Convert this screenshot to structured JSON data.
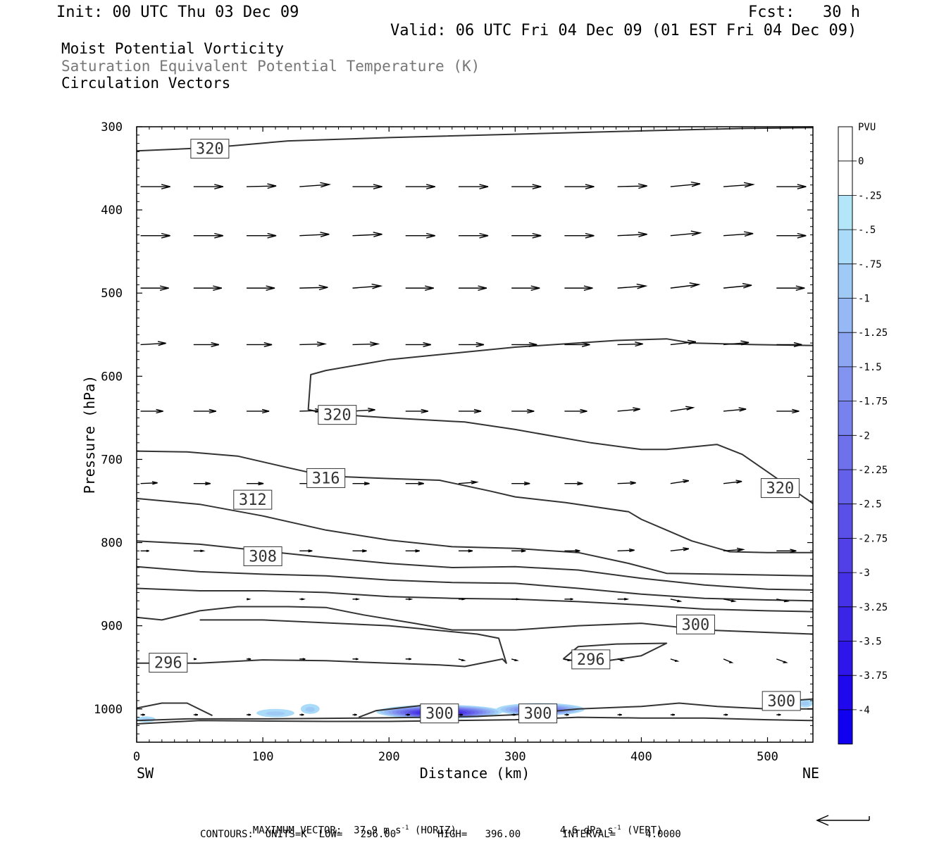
{
  "header": {
    "init": "Init: 00 UTC Thu 03 Dec 09",
    "fcst": "Fcst:   30 h",
    "valid": "Valid: 06 UTC Fri 04 Dec 09 (01 EST Fri 04 Dec 09)"
  },
  "titles": {
    "line1": "Moist Potential Vorticity",
    "line2": "Saturation Equivalent Potential Temperature (K)",
    "line3": "Circulation Vectors"
  },
  "footer": {
    "max_vector_label": "MAXIMUM VECTOR:",
    "max_horiz_value": "37.9",
    "max_horiz_units": "m s",
    "max_horiz_kind": "(HORIZ)",
    "max_vert_value": "4.6",
    "max_vert_units": "dPa s",
    "max_vert_kind": "(VERT)",
    "exp": "-1",
    "contours": "CONTOURS:  UNITS=K  LOW=   296.00       HIGH=   396.00       INTERVAL=     4.0000"
  },
  "chart_data": {
    "type": "cross-section",
    "xlabel": "Distance (km)",
    "ylabel": "Pressure (hPa)",
    "x_range": [
      0,
      536
    ],
    "y_range": [
      300,
      1040
    ],
    "y_scale": "linear, inverted",
    "x_ticks": [
      0,
      100,
      200,
      300,
      400,
      500
    ],
    "y_ticks": [
      300,
      400,
      500,
      600,
      700,
      800,
      900,
      1000
    ],
    "x_end_labels": {
      "left": "SW",
      "right": "NE"
    },
    "colorbar": {
      "units": "PVU",
      "labels": [
        "0",
        "-.25",
        "-.5",
        "-.75",
        "-1",
        "-1.25",
        "-1.5",
        "-1.75",
        "-2",
        "-2.25",
        "-2.5",
        "-2.75",
        "-3",
        "-3.25",
        "-3.5",
        "-3.75",
        "-4"
      ],
      "colors": [
        "#ffffff",
        "#ffffff",
        "#b4e6fa",
        "#aadcfa",
        "#a0caf6",
        "#96b8f4",
        "#8ca6f2",
        "#8294f0",
        "#7882ee",
        "#6e70ec",
        "#6460ea",
        "#5a50e8",
        "#5040e6",
        "#4632e6",
        "#3a24e8",
        "#2e16ea",
        "#2008ee",
        "#1000f0"
      ]
    },
    "contour_labels": [
      {
        "value": "320",
        "x": 58,
        "p": 326
      },
      {
        "value": "320",
        "x": 159,
        "p": 646
      },
      {
        "value": "320",
        "x": 510,
        "p": 734
      },
      {
        "value": "316",
        "x": 150,
        "p": 722
      },
      {
        "value": "312",
        "x": 92,
        "p": 748
      },
      {
        "value": "308",
        "x": 100,
        "p": 816
      },
      {
        "value": "300",
        "x": 443,
        "p": 898
      },
      {
        "value": "296",
        "x": 25,
        "p": 944
      },
      {
        "value": "296",
        "x": 360,
        "p": 940
      },
      {
        "value": "300",
        "x": 511,
        "p": 990
      },
      {
        "value": "300",
        "x": 240,
        "p": 1005
      },
      {
        "value": "300",
        "x": 318,
        "p": 1005
      }
    ],
    "contours": [
      {
        "points": [
          [
            0,
            329
          ],
          [
            60,
            325
          ],
          [
            120,
            317
          ],
          [
            200,
            313
          ],
          [
            300,
            309
          ],
          [
            400,
            305
          ],
          [
            480,
            302
          ],
          [
            536,
            301
          ]
        ]
      },
      {
        "points": [
          [
            536,
            563
          ],
          [
            490,
            562
          ],
          [
            440,
            560
          ],
          [
            420,
            555
          ],
          [
            380,
            557
          ],
          [
            300,
            565
          ],
          [
            200,
            580
          ],
          [
            150,
            593
          ],
          [
            138,
            598
          ],
          [
            136,
            640
          ],
          [
            150,
            645
          ],
          [
            200,
            650
          ],
          [
            260,
            655
          ],
          [
            300,
            664
          ],
          [
            360,
            680
          ],
          [
            400,
            688
          ],
          [
            420,
            688
          ],
          [
            460,
            682
          ],
          [
            480,
            694
          ],
          [
            500,
            715
          ],
          [
            536,
            753
          ]
        ]
      },
      {
        "points": [
          [
            0,
            690
          ],
          [
            40,
            691
          ],
          [
            80,
            696
          ],
          [
            120,
            710
          ],
          [
            150,
            720
          ],
          [
            200,
            723
          ],
          [
            240,
            725
          ],
          [
            280,
            738
          ],
          [
            300,
            745
          ],
          [
            340,
            752
          ],
          [
            390,
            763
          ],
          [
            400,
            772
          ],
          [
            420,
            785
          ],
          [
            440,
            798
          ],
          [
            470,
            811
          ],
          [
            500,
            812
          ],
          [
            536,
            812
          ]
        ]
      },
      {
        "points": [
          [
            0,
            747
          ],
          [
            50,
            754
          ],
          [
            100,
            768
          ],
          [
            150,
            785
          ],
          [
            200,
            797
          ],
          [
            250,
            805
          ],
          [
            300,
            807
          ],
          [
            350,
            812
          ],
          [
            390,
            825
          ],
          [
            420,
            837
          ],
          [
            460,
            838
          ],
          [
            500,
            839
          ],
          [
            536,
            840
          ]
        ]
      },
      {
        "points": [
          [
            0,
            798
          ],
          [
            50,
            802
          ],
          [
            100,
            810
          ],
          [
            150,
            818
          ],
          [
            200,
            825
          ],
          [
            250,
            830
          ],
          [
            300,
            829
          ],
          [
            350,
            833
          ],
          [
            400,
            843
          ],
          [
            450,
            851
          ],
          [
            500,
            856
          ],
          [
            536,
            857
          ]
        ]
      },
      {
        "points": [
          [
            0,
            829
          ],
          [
            50,
            835
          ],
          [
            100,
            838
          ],
          [
            150,
            840
          ],
          [
            200,
            845
          ],
          [
            250,
            848
          ],
          [
            300,
            849
          ],
          [
            350,
            855
          ],
          [
            400,
            862
          ],
          [
            450,
            867
          ],
          [
            500,
            869
          ],
          [
            536,
            870
          ]
        ]
      },
      {
        "points": [
          [
            0,
            855
          ],
          [
            50,
            858
          ],
          [
            100,
            858
          ],
          [
            150,
            860
          ],
          [
            200,
            865
          ],
          [
            250,
            867
          ],
          [
            300,
            868
          ],
          [
            350,
            871
          ],
          [
            400,
            875
          ],
          [
            450,
            880
          ],
          [
            500,
            882
          ],
          [
            536,
            883
          ]
        ]
      },
      {
        "points": [
          [
            0,
            890
          ],
          [
            20,
            893
          ],
          [
            50,
            882
          ],
          [
            80,
            877
          ],
          [
            120,
            877
          ],
          [
            150,
            878
          ],
          [
            180,
            887
          ],
          [
            220,
            897
          ],
          [
            250,
            905
          ],
          [
            300,
            905
          ],
          [
            350,
            900
          ],
          [
            400,
            897
          ],
          [
            450,
            905
          ],
          [
            500,
            908
          ],
          [
            536,
            910
          ]
        ]
      },
      {
        "points": [
          [
            0,
            945
          ],
          [
            50,
            945
          ],
          [
            100,
            941
          ],
          [
            150,
            942
          ],
          [
            200,
            945
          ],
          [
            240,
            947
          ],
          [
            260,
            949
          ],
          [
            290,
            940
          ],
          [
            293,
            945
          ],
          [
            287,
            915
          ],
          [
            270,
            910
          ],
          [
            200,
            900
          ],
          [
            100,
            893
          ],
          [
            50,
            893
          ]
        ]
      },
      {
        "points": [
          [
            338,
            940
          ],
          [
            350,
            925
          ],
          [
            380,
            922
          ],
          [
            420,
            921
          ],
          [
            400,
            936
          ],
          [
            360,
            945
          ],
          [
            338,
            940
          ]
        ]
      },
      {
        "points": [
          [
            0,
            999
          ],
          [
            20,
            993
          ],
          [
            40,
            993
          ],
          [
            60,
            1008
          ]
        ]
      },
      {
        "points": [
          [
            0,
            1014
          ],
          [
            40,
            1012
          ],
          [
            100,
            1012
          ],
          [
            180,
            1011
          ],
          [
            230,
            1010
          ],
          [
            270,
            1009
          ],
          [
            300,
            1007
          ],
          [
            350,
            1000
          ],
          [
            400,
            997
          ],
          [
            430,
            993
          ],
          [
            460,
            997
          ],
          [
            500,
            1000
          ],
          [
            536,
            1000
          ]
        ]
      },
      {
        "points": [
          [
            0,
            1018
          ],
          [
            50,
            1014
          ],
          [
            150,
            1015
          ],
          [
            200,
            1015
          ],
          [
            250,
            1014
          ],
          [
            300,
            1013
          ],
          [
            350,
            1010
          ],
          [
            400,
            1011
          ],
          [
            450,
            1011
          ],
          [
            500,
            1013
          ],
          [
            536,
            1014
          ]
        ]
      },
      {
        "points": [
          [
            176,
            1010
          ],
          [
            190,
            1002
          ],
          [
            225,
            996
          ],
          [
            240,
            1001
          ],
          [
            250,
            1013
          ]
        ]
      },
      {
        "points": [
          [
            505,
            998
          ],
          [
            520,
            990
          ],
          [
            536,
            988
          ]
        ]
      }
    ],
    "pv_negative_areas": [
      {
        "x0": 190,
        "x1": 290,
        "p0": 995,
        "p1": 1012,
        "min_pvu": -3.8
      },
      {
        "x0": 285,
        "x1": 355,
        "p0": 993,
        "p1": 1008,
        "min_pvu": -2.3
      },
      {
        "x0": 95,
        "x1": 125,
        "p0": 1000,
        "p1": 1010,
        "min_pvu": -0.4
      },
      {
        "x0": 130,
        "x1": 145,
        "p0": 994,
        "p1": 1006,
        "min_pvu": -0.3
      },
      {
        "x0": 0,
        "x1": 15,
        "p0": 1009,
        "p1": 1016,
        "min_pvu": -0.3
      },
      {
        "x0": 524,
        "x1": 536,
        "p0": 988,
        "p1": 998,
        "min_pvu": -0.3
      }
    ],
    "vector_columns_x": [
      2,
      44,
      86,
      128,
      170,
      212,
      254,
      296,
      338,
      380,
      422,
      464,
      506
    ],
    "vector_rows": [
      {
        "p": 372,
        "len": [
          42,
          42,
          42,
          42,
          42,
          42,
          42,
          42,
          42,
          42,
          42,
          42,
          42
        ],
        "tilt": [
          0,
          0,
          -1,
          -3,
          0,
          0,
          0,
          0,
          0,
          -1,
          -4,
          -3,
          0
        ]
      },
      {
        "p": 431,
        "len": [
          42,
          42,
          42,
          42,
          42,
          42,
          42,
          42,
          42,
          42,
          42,
          42,
          42
        ],
        "tilt": [
          0,
          0,
          0,
          -2,
          -2,
          0,
          0,
          0,
          0,
          -2,
          -4,
          -3,
          0
        ]
      },
      {
        "p": 494,
        "len": [
          40,
          40,
          40,
          40,
          40,
          40,
          40,
          40,
          40,
          40,
          40,
          40,
          40
        ],
        "tilt": [
          0,
          0,
          0,
          -1,
          -3,
          0,
          0,
          0,
          0,
          -3,
          -5,
          -4,
          0
        ]
      },
      {
        "p": 562,
        "len": [
          36,
          36,
          36,
          36,
          36,
          36,
          36,
          36,
          36,
          36,
          36,
          36,
          36
        ],
        "tilt": [
          -2,
          0,
          0,
          -1,
          -1,
          0,
          0,
          0,
          0,
          -1,
          -4,
          -3,
          0
        ]
      },
      {
        "p": 642,
        "len": [
          32,
          32,
          32,
          32,
          32,
          32,
          32,
          32,
          32,
          32,
          32,
          32,
          32
        ],
        "tilt": [
          0,
          0,
          0,
          -1,
          -2,
          0,
          0,
          0,
          0,
          -3,
          -5,
          -3,
          0
        ]
      },
      {
        "p": 729,
        "len": [
          24,
          24,
          24,
          24,
          24,
          26,
          26,
          26,
          26,
          26,
          26,
          26,
          26
        ],
        "tilt": [
          -1,
          0,
          0,
          0,
          0,
          0,
          -2,
          0,
          0,
          -1,
          -4,
          -3,
          0
        ]
      },
      {
        "p": 810,
        "len": [
          12,
          14,
          16,
          18,
          20,
          20,
          20,
          20,
          22,
          24,
          26,
          28,
          28
        ],
        "tilt": [
          0,
          0,
          0,
          0,
          0,
          0,
          0,
          0,
          0,
          -1,
          -3,
          -2,
          0
        ]
      },
      {
        "p": 868,
        "len": [
          0,
          0,
          4,
          6,
          8,
          8,
          8,
          10,
          12,
          14,
          14,
          16,
          16
        ],
        "tilt": [
          0,
          0,
          0,
          0,
          0,
          0,
          0,
          0,
          0,
          0,
          3,
          3,
          3
        ]
      },
      {
        "p": 940,
        "len": [
          0,
          4,
          6,
          8,
          8,
          8,
          8,
          8,
          8,
          8,
          10,
          12,
          14
        ],
        "tilt": [
          0,
          0,
          0,
          0,
          0,
          0,
          2,
          2,
          2,
          2,
          3,
          5,
          5
        ]
      },
      {
        "p": 1007,
        "len": [
          6,
          6,
          6,
          6,
          6,
          6,
          6,
          6,
          6,
          6,
          6,
          6,
          6
        ],
        "tilt": [
          0,
          0,
          0,
          0,
          0,
          0,
          0,
          0,
          0,
          0,
          0,
          0,
          0
        ]
      }
    ]
  }
}
